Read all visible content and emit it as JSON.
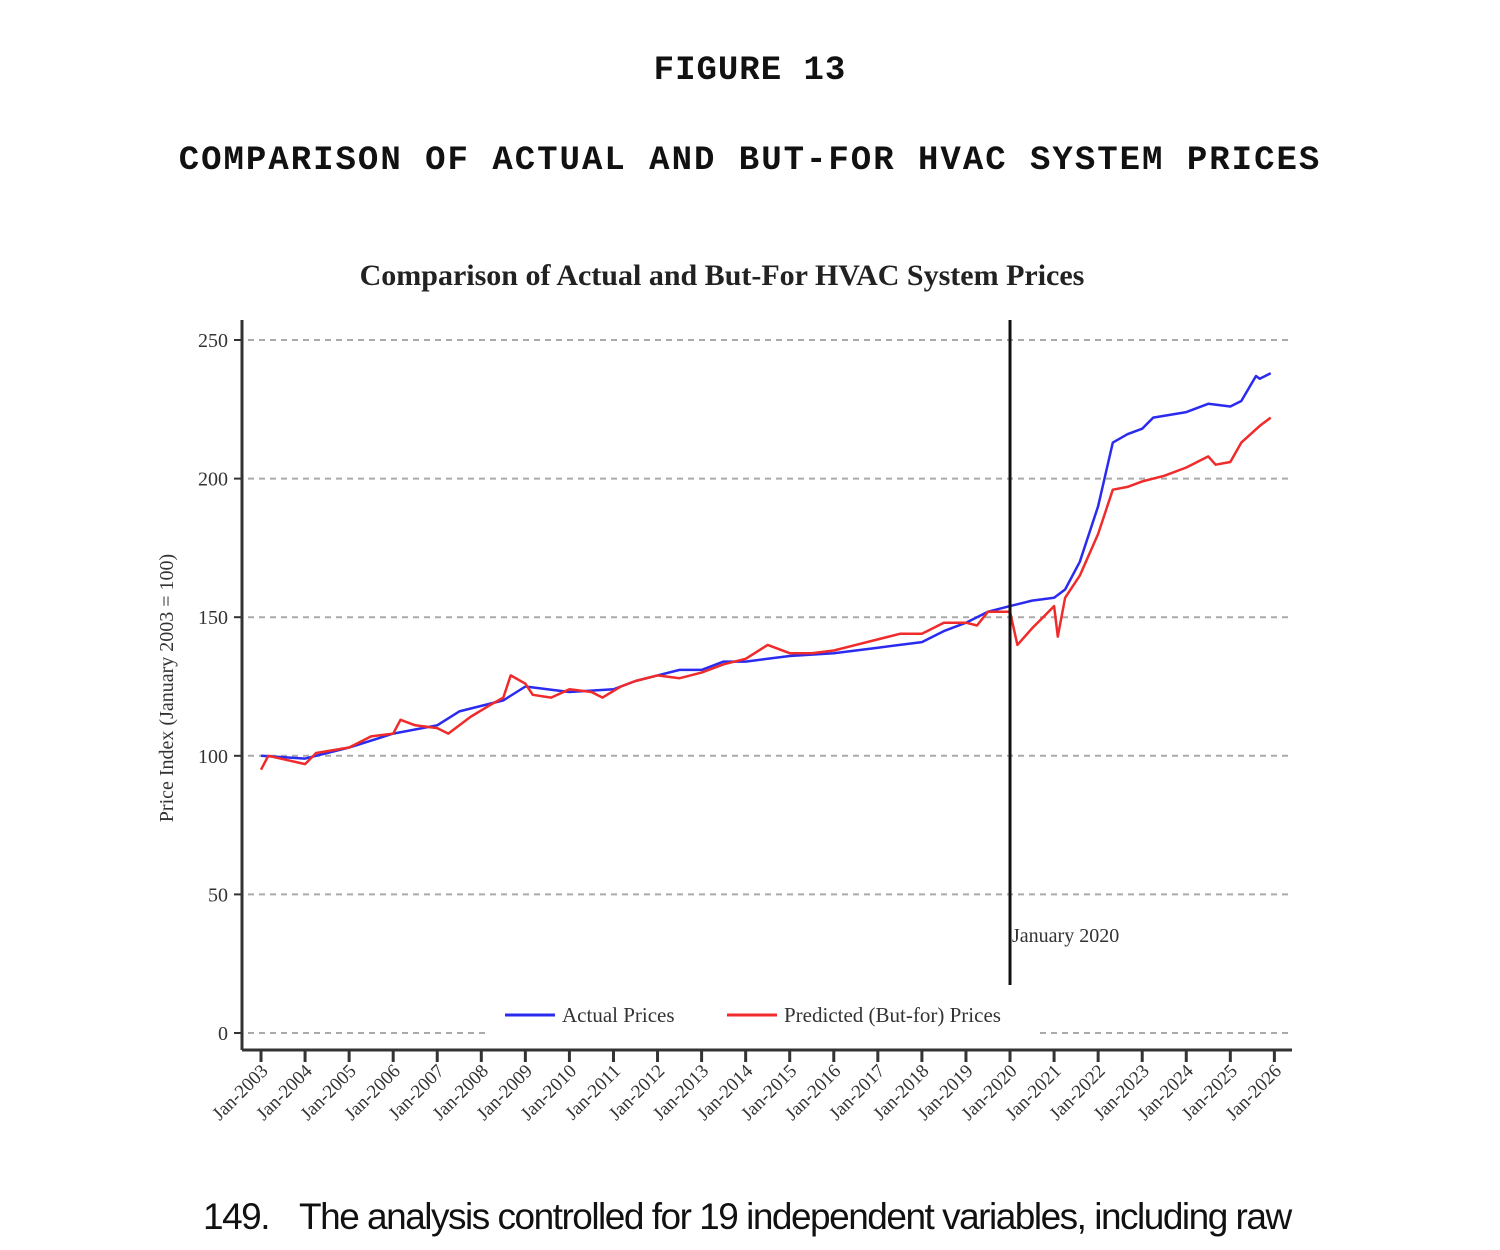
{
  "document": {
    "figure_label": "FIGURE 13",
    "figure_title": "COMPARISON OF ACTUAL AND BUT-FOR HVAC SYSTEM PRICES",
    "paragraph_number": "149.",
    "paragraph_text": "The analysis controlled for 19 independent variables, including raw"
  },
  "chart_data": {
    "type": "line",
    "title": "Comparison of Actual and But-For HVAC System Prices",
    "xlabel": "",
    "ylabel": "Price Index (January 2003 = 100)",
    "ylim": [
      0,
      250
    ],
    "yticks": [
      "0",
      "50",
      "100",
      "150",
      "200",
      "250"
    ],
    "xticks": [
      "Jan-2003",
      "Jan-2004",
      "Jan-2005",
      "Jan-2006",
      "Jan-2007",
      "Jan-2008",
      "Jan-2009",
      "Jan-2010",
      "Jan-2011",
      "Jan-2012",
      "Jan-2013",
      "Jan-2014",
      "Jan-2015",
      "Jan-2016",
      "Jan-2017",
      "Jan-2018",
      "Jan-2019",
      "Jan-2020",
      "Jan-2021",
      "Jan-2022",
      "Jan-2023",
      "Jan-2024",
      "Jan-2025",
      "Jan-2026"
    ],
    "grid": "horizontal dashed",
    "legend_position": "bottom-center",
    "annotation": {
      "date": "2020-01",
      "label": "January 2020"
    },
    "series": [
      {
        "name": "Actual Prices",
        "color": "#2b2bf0",
        "points": [
          [
            "2003-01",
            100
          ],
          [
            "2004-01",
            99
          ],
          [
            "2005-01",
            103
          ],
          [
            "2006-01",
            108
          ],
          [
            "2007-01",
            111
          ],
          [
            "2007-07",
            116
          ],
          [
            "2008-01",
            118
          ],
          [
            "2008-07",
            120
          ],
          [
            "2009-01",
            125
          ],
          [
            "2009-07",
            124
          ],
          [
            "2010-01",
            123
          ],
          [
            "2011-01",
            124
          ],
          [
            "2011-07",
            127
          ],
          [
            "2012-01",
            129
          ],
          [
            "2012-07",
            131
          ],
          [
            "2013-01",
            131
          ],
          [
            "2013-07",
            134
          ],
          [
            "2014-01",
            134
          ],
          [
            "2014-07",
            135
          ],
          [
            "2015-01",
            136
          ],
          [
            "2016-01",
            137
          ],
          [
            "2017-01",
            139
          ],
          [
            "2017-07",
            140
          ],
          [
            "2018-01",
            141
          ],
          [
            "2018-07",
            145
          ],
          [
            "2019-01",
            148
          ],
          [
            "2019-07",
            152
          ],
          [
            "2020-01",
            154
          ],
          [
            "2020-07",
            156
          ],
          [
            "2021-01",
            157
          ],
          [
            "2021-04",
            160
          ],
          [
            "2021-08",
            170
          ],
          [
            "2022-01",
            190
          ],
          [
            "2022-05",
            213
          ],
          [
            "2022-09",
            216
          ],
          [
            "2023-01",
            218
          ],
          [
            "2023-04",
            222
          ],
          [
            "2024-01",
            224
          ],
          [
            "2024-07",
            227
          ],
          [
            "2025-01",
            226
          ],
          [
            "2025-04",
            228
          ],
          [
            "2025-08",
            237
          ],
          [
            "2025-09",
            236
          ],
          [
            "2025-12",
            238
          ]
        ]
      },
      {
        "name": "Predicted (But-for) Prices",
        "color": "#f02b2b",
        "points": [
          [
            "2003-01",
            95
          ],
          [
            "2003-03",
            100
          ],
          [
            "2004-01",
            97
          ],
          [
            "2004-04",
            101
          ],
          [
            "2005-01",
            103
          ],
          [
            "2005-07",
            107
          ],
          [
            "2006-01",
            108
          ],
          [
            "2006-03",
            113
          ],
          [
            "2006-07",
            111
          ],
          [
            "2007-01",
            110
          ],
          [
            "2007-04",
            108
          ],
          [
            "2007-10",
            114
          ],
          [
            "2008-03",
            118
          ],
          [
            "2008-07",
            121
          ],
          [
            "2008-09",
            129
          ],
          [
            "2009-01",
            126
          ],
          [
            "2009-03",
            122
          ],
          [
            "2009-08",
            121
          ],
          [
            "2010-01",
            124
          ],
          [
            "2010-07",
            123
          ],
          [
            "2010-10",
            121
          ],
          [
            "2011-03",
            125
          ],
          [
            "2011-07",
            127
          ],
          [
            "2012-01",
            129
          ],
          [
            "2012-07",
            128
          ],
          [
            "2013-01",
            130
          ],
          [
            "2013-07",
            133
          ],
          [
            "2014-01",
            135
          ],
          [
            "2014-07",
            140
          ],
          [
            "2015-01",
            137
          ],
          [
            "2015-07",
            137
          ],
          [
            "2016-01",
            138
          ],
          [
            "2016-07",
            140
          ],
          [
            "2017-01",
            142
          ],
          [
            "2017-07",
            144
          ],
          [
            "2018-01",
            144
          ],
          [
            "2018-07",
            148
          ],
          [
            "2019-01",
            148
          ],
          [
            "2019-04",
            147
          ],
          [
            "2019-07",
            152
          ],
          [
            "2020-01",
            152
          ],
          [
            "2020-03",
            140
          ],
          [
            "2020-07",
            146
          ],
          [
            "2020-10",
            150
          ],
          [
            "2021-01",
            154
          ],
          [
            "2021-02",
            143
          ],
          [
            "2021-04",
            157
          ],
          [
            "2021-08",
            165
          ],
          [
            "2022-01",
            180
          ],
          [
            "2022-05",
            196
          ],
          [
            "2022-09",
            197
          ],
          [
            "2023-01",
            199
          ],
          [
            "2023-07",
            201
          ],
          [
            "2024-01",
            204
          ],
          [
            "2024-07",
            208
          ],
          [
            "2024-09",
            205
          ],
          [
            "2025-01",
            206
          ],
          [
            "2025-04",
            213
          ],
          [
            "2025-09",
            219
          ],
          [
            "2025-12",
            222
          ]
        ]
      }
    ]
  }
}
